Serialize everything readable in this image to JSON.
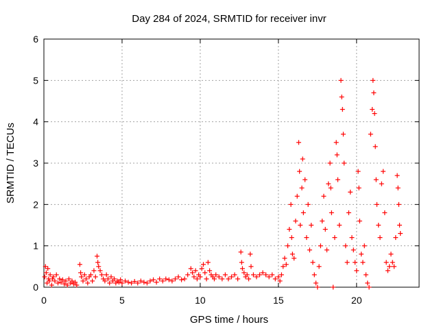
{
  "chart_data": {
    "type": "scatter",
    "title": "Day 284 of 2024, SRMTID for receiver invr",
    "xlabel": "GPS time / hours",
    "ylabel": "SRMTID / TECUs",
    "xlim": [
      0,
      24
    ],
    "ylim": [
      0,
      6
    ],
    "xticks": [
      0,
      5,
      10,
      15,
      20
    ],
    "yticks": [
      0,
      1,
      2,
      3,
      4,
      5,
      6
    ],
    "grid": true,
    "marker": "+",
    "color": "#ff0000",
    "series": [
      {
        "name": "SRMTID",
        "points": [
          [
            0.05,
            0.25
          ],
          [
            0.1,
            0.5
          ],
          [
            0.15,
            0.35
          ],
          [
            0.2,
            0.1
          ],
          [
            0.25,
            0.45
          ],
          [
            0.3,
            0.2
          ],
          [
            0.35,
            0.15
          ],
          [
            0.4,
            0.3
          ],
          [
            0.5,
            0.05
          ],
          [
            0.55,
            0.2
          ],
          [
            0.6,
            0.25
          ],
          [
            0.7,
            0.15
          ],
          [
            0.8,
            0.3
          ],
          [
            0.9,
            0.1
          ],
          [
            1.0,
            0.2
          ],
          [
            1.1,
            0.12
          ],
          [
            1.2,
            0.18
          ],
          [
            1.3,
            0.08
          ],
          [
            1.4,
            0.15
          ],
          [
            1.5,
            0.05
          ],
          [
            1.6,
            0.2
          ],
          [
            1.7,
            0.1
          ],
          [
            1.8,
            0.15
          ],
          [
            1.9,
            0.08
          ],
          [
            2.0,
            0.12
          ],
          [
            2.1,
            0.05
          ],
          [
            2.3,
            0.55
          ],
          [
            2.35,
            0.35
          ],
          [
            2.4,
            0.25
          ],
          [
            2.5,
            0.15
          ],
          [
            2.6,
            0.3
          ],
          [
            2.7,
            0.2
          ],
          [
            2.8,
            0.1
          ],
          [
            2.9,
            0.25
          ],
          [
            3.0,
            0.3
          ],
          [
            3.1,
            0.15
          ],
          [
            3.2,
            0.4
          ],
          [
            3.3,
            0.25
          ],
          [
            3.4,
            0.75
          ],
          [
            3.45,
            0.6
          ],
          [
            3.5,
            0.5
          ],
          [
            3.6,
            0.4
          ],
          [
            3.7,
            0.3
          ],
          [
            3.8,
            0.2
          ],
          [
            3.9,
            0.15
          ],
          [
            4.0,
            0.3
          ],
          [
            4.1,
            0.2
          ],
          [
            4.2,
            0.1
          ],
          [
            4.3,
            0.25
          ],
          [
            4.4,
            0.15
          ],
          [
            4.5,
            0.2
          ],
          [
            4.6,
            0.1
          ],
          [
            4.7,
            0.15
          ],
          [
            4.8,
            0.12
          ],
          [
            4.9,
            0.18
          ],
          [
            5.0,
            0.1
          ],
          [
            5.2,
            0.15
          ],
          [
            5.4,
            0.12
          ],
          [
            5.6,
            0.1
          ],
          [
            5.8,
            0.14
          ],
          [
            6.0,
            0.1
          ],
          [
            6.2,
            0.15
          ],
          [
            6.4,
            0.12
          ],
          [
            6.6,
            0.1
          ],
          [
            6.8,
            0.15
          ],
          [
            7.0,
            0.18
          ],
          [
            7.2,
            0.12
          ],
          [
            7.4,
            0.2
          ],
          [
            7.6,
            0.15
          ],
          [
            7.8,
            0.2
          ],
          [
            8.0,
            0.18
          ],
          [
            8.2,
            0.15
          ],
          [
            8.4,
            0.2
          ],
          [
            8.6,
            0.25
          ],
          [
            8.8,
            0.18
          ],
          [
            9.0,
            0.2
          ],
          [
            9.2,
            0.3
          ],
          [
            9.4,
            0.45
          ],
          [
            9.5,
            0.35
          ],
          [
            9.6,
            0.25
          ],
          [
            9.7,
            0.4
          ],
          [
            9.8,
            0.2
          ],
          [
            9.9,
            0.3
          ],
          [
            10.0,
            0.25
          ],
          [
            10.1,
            0.45
          ],
          [
            10.2,
            0.55
          ],
          [
            10.3,
            0.35
          ],
          [
            10.4,
            0.2
          ],
          [
            10.5,
            0.6
          ],
          [
            10.6,
            0.4
          ],
          [
            10.7,
            0.3
          ],
          [
            10.8,
            0.25
          ],
          [
            10.9,
            0.2
          ],
          [
            11.0,
            0.3
          ],
          [
            11.2,
            0.25
          ],
          [
            11.4,
            0.2
          ],
          [
            11.6,
            0.3
          ],
          [
            11.8,
            0.2
          ],
          [
            12.0,
            0.25
          ],
          [
            12.2,
            0.3
          ],
          [
            12.4,
            0.2
          ],
          [
            12.6,
            0.85
          ],
          [
            12.65,
            0.6
          ],
          [
            12.7,
            0.45
          ],
          [
            12.8,
            0.35
          ],
          [
            12.9,
            0.25
          ],
          [
            13.0,
            0.3
          ],
          [
            13.1,
            0.2
          ],
          [
            13.2,
            0.8
          ],
          [
            13.25,
            0.5
          ],
          [
            13.4,
            0.3
          ],
          [
            13.6,
            0.25
          ],
          [
            13.8,
            0.3
          ],
          [
            14.0,
            0.35
          ],
          [
            14.2,
            0.3
          ],
          [
            14.4,
            0.25
          ],
          [
            14.6,
            0.3
          ],
          [
            14.8,
            0.2
          ],
          [
            15.0,
            0.25
          ],
          [
            15.1,
            0.15
          ],
          [
            15.2,
            0.3
          ],
          [
            15.3,
            0.5
          ],
          [
            15.4,
            0.7
          ],
          [
            15.5,
            0.55
          ],
          [
            15.6,
            1.0
          ],
          [
            15.7,
            1.4
          ],
          [
            15.8,
            2.0
          ],
          [
            15.85,
            1.2
          ],
          [
            15.9,
            0.8
          ],
          [
            16.0,
            0.7
          ],
          [
            16.1,
            1.6
          ],
          [
            16.2,
            2.2
          ],
          [
            16.3,
            3.5
          ],
          [
            16.35,
            2.8
          ],
          [
            16.4,
            1.5
          ],
          [
            16.5,
            2.4
          ],
          [
            16.55,
            3.1
          ],
          [
            16.6,
            1.8
          ],
          [
            16.7,
            2.6
          ],
          [
            16.8,
            1.2
          ],
          [
            16.9,
            2.0
          ],
          [
            17.0,
            0.9
          ],
          [
            17.1,
            1.5
          ],
          [
            17.2,
            0.6
          ],
          [
            17.3,
            0.3
          ],
          [
            17.4,
            0.1
          ],
          [
            17.5,
            0.0
          ],
          [
            17.6,
            0.5
          ],
          [
            17.7,
            1.0
          ],
          [
            17.8,
            1.6
          ],
          [
            17.9,
            2.2
          ],
          [
            18.0,
            1.4
          ],
          [
            18.1,
            0.9
          ],
          [
            18.2,
            2.5
          ],
          [
            18.3,
            3.0
          ],
          [
            18.35,
            2.4
          ],
          [
            18.4,
            1.8
          ],
          [
            18.5,
            0.0
          ],
          [
            18.6,
            1.2
          ],
          [
            18.7,
            3.5
          ],
          [
            18.75,
            3.2
          ],
          [
            18.8,
            2.6
          ],
          [
            18.9,
            1.5
          ],
          [
            19.0,
            5.0
          ],
          [
            19.05,
            4.6
          ],
          [
            19.1,
            4.3
          ],
          [
            19.15,
            3.7
          ],
          [
            19.2,
            3.0
          ],
          [
            19.3,
            1.0
          ],
          [
            19.4,
            0.6
          ],
          [
            19.5,
            1.8
          ],
          [
            19.6,
            2.3
          ],
          [
            19.7,
            1.2
          ],
          [
            19.8,
            0.9
          ],
          [
            19.9,
            0.6
          ],
          [
            20.0,
            0.4
          ],
          [
            20.1,
            2.8
          ],
          [
            20.15,
            2.4
          ],
          [
            20.2,
            1.6
          ],
          [
            20.3,
            0.8
          ],
          [
            20.4,
            0.6
          ],
          [
            20.5,
            1.0
          ],
          [
            20.6,
            0.3
          ],
          [
            20.7,
            0.1
          ],
          [
            20.8,
            0.0
          ],
          [
            20.9,
            3.7
          ],
          [
            21.0,
            4.3
          ],
          [
            21.05,
            5.0
          ],
          [
            21.1,
            4.7
          ],
          [
            21.15,
            4.2
          ],
          [
            21.2,
            3.4
          ],
          [
            21.25,
            2.6
          ],
          [
            21.3,
            2.0
          ],
          [
            21.4,
            1.5
          ],
          [
            21.5,
            1.2
          ],
          [
            21.6,
            2.5
          ],
          [
            21.7,
            2.8
          ],
          [
            21.8,
            1.8
          ],
          [
            21.9,
            0.6
          ],
          [
            22.0,
            0.4
          ],
          [
            22.1,
            0.5
          ],
          [
            22.2,
            0.8
          ],
          [
            22.3,
            0.6
          ],
          [
            22.4,
            0.5
          ],
          [
            22.5,
            1.2
          ],
          [
            22.6,
            2.7
          ],
          [
            22.65,
            2.4
          ],
          [
            22.7,
            2.0
          ],
          [
            22.75,
            1.5
          ],
          [
            22.8,
            1.3
          ]
        ]
      }
    ]
  }
}
